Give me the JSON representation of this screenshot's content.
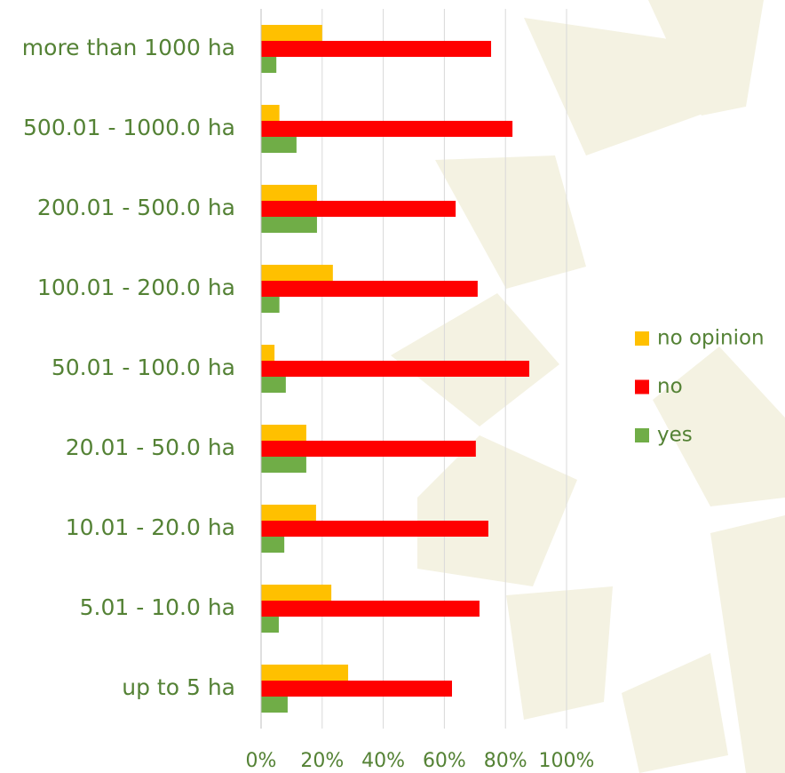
{
  "chart_data": {
    "type": "bar",
    "orientation": "horizontal",
    "categories": [
      "more than 1000 ha",
      "500.01 - 1000.0 ha",
      "200.01 - 500.0 ha",
      "100.01 - 200.0 ha",
      "50.01 - 100.0 ha",
      "20.01 - 50.0 ha",
      "10.01 - 20.0 ha",
      "5.01 - 10.0 ha",
      "up to 5 ha"
    ],
    "series": [
      {
        "name": "no opinion",
        "color": "#ffc000",
        "values": [
          20,
          6,
          18.3,
          23.5,
          4.4,
          14.8,
          18,
          23,
          28.5
        ]
      },
      {
        "name": "no",
        "color": "#ff0000",
        "values": [
          75.3,
          82.3,
          63.7,
          70.9,
          87.8,
          70.3,
          74.4,
          71.5,
          62.5
        ]
      },
      {
        "name": "yes",
        "color": "#70ad47",
        "values": [
          5,
          11.6,
          18.3,
          6,
          8.1,
          14.8,
          7.6,
          5.8,
          8.7
        ]
      }
    ],
    "xlim": [
      0,
      100
    ],
    "xticks": [
      {
        "value": 0,
        "label": "0%"
      },
      {
        "value": 20,
        "label": "20%"
      },
      {
        "value": 40,
        "label": "40%"
      },
      {
        "value": 60,
        "label": "60%"
      },
      {
        "value": 80,
        "label": "80%"
      },
      {
        "value": 100,
        "label": "100%"
      }
    ],
    "grid": true,
    "legend": "right"
  }
}
